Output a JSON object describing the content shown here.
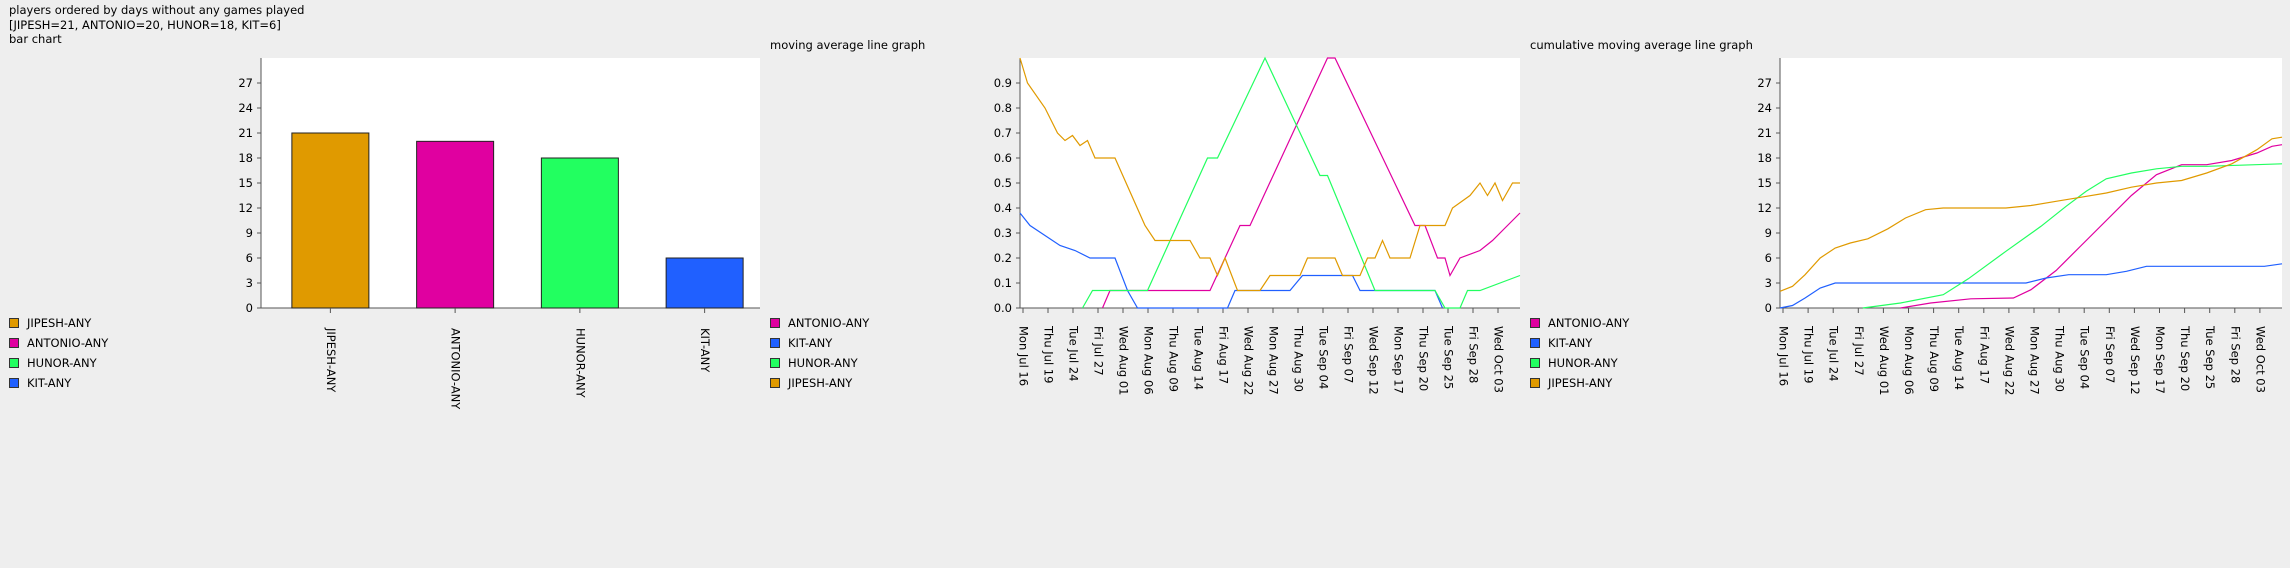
{
  "header": {
    "line1": "players ordered by days without any games played",
    "line2": "[JIPESH=21, ANTONIO=20, HUNOR=18, KIT=6]",
    "line3": "bar chart"
  },
  "colors": {
    "JIPESH": "#e09a00",
    "ANTONIO": "#e000a0",
    "HUNOR": "#22ff60",
    "KIT": "#2060ff"
  },
  "dates": [
    "Mon Jul 16",
    "Thu Jul 19",
    "Tue Jul 24",
    "Fri Jul 27",
    "Wed Aug 01",
    "Mon Aug 06",
    "Thu Aug 09",
    "Tue Aug 14",
    "Fri Aug 17",
    "Wed Aug 22",
    "Mon Aug 27",
    "Thu Aug 30",
    "Tue Sep 04",
    "Fri Sep 07",
    "Wed Sep 12",
    "Mon Sep 17",
    "Thu Sep 20",
    "Tue Sep 25",
    "Fri Sep 28",
    "Wed Oct 03"
  ],
  "chart_data": [
    {
      "type": "bar",
      "title": "bar chart",
      "categories": [
        "JIPESH-ANY",
        "ANTONIO-ANY",
        "HUNOR-ANY",
        "KIT-ANY"
      ],
      "values": [
        21,
        20,
        18,
        6
      ],
      "ylim": [
        0,
        30
      ],
      "yticks": [
        0,
        3,
        6,
        9,
        12,
        15,
        18,
        21,
        24,
        27
      ],
      "legend": [
        "JIPESH-ANY",
        "ANTONIO-ANY",
        "HUNOR-ANY",
        "KIT-ANY"
      ],
      "legend_placement": "left"
    },
    {
      "type": "line",
      "title": "moving average line graph",
      "ylim": [
        0,
        1
      ],
      "yticks": [
        "0.0",
        "0.1",
        "0.2",
        "0.3",
        "0.4",
        "0.5",
        "0.6",
        "0.7",
        "0.8",
        "0.9"
      ],
      "legend": [
        "ANTONIO-ANY",
        "KIT-ANY",
        "HUNOR-ANY",
        "JIPESH-ANY"
      ],
      "legend_placement": "left",
      "series": [
        {
          "name": "ANTONIO-ANY",
          "color": "ANTONIO",
          "points": [
            [
              0,
              null
            ],
            [
              3.3,
              null
            ],
            [
              3.3,
              0
            ],
            [
              3.6,
              0.07
            ],
            [
              7.6,
              0.07
            ],
            [
              8.2,
              0.2
            ],
            [
              8.8,
              0.33
            ],
            [
              9.2,
              0.33
            ],
            [
              12.3,
              1.0
            ],
            [
              12.6,
              1.0
            ],
            [
              15.8,
              0.33
            ],
            [
              16.2,
              0.33
            ],
            [
              16.7,
              0.2
            ],
            [
              17.0,
              0.2
            ],
            [
              17.2,
              0.13
            ],
            [
              17.6,
              0.2
            ],
            [
              18.4,
              0.23
            ],
            [
              18.9,
              0.27
            ],
            [
              19.4,
              0.32
            ],
            [
              20,
              0.38
            ]
          ]
        },
        {
          "name": "KIT-ANY",
          "color": "KIT",
          "points": [
            [
              0,
              0.38
            ],
            [
              0.4,
              0.33
            ],
            [
              1.0,
              0.29
            ],
            [
              1.6,
              0.25
            ],
            [
              2.2,
              0.23
            ],
            [
              2.8,
              0.2
            ],
            [
              3.8,
              0.2
            ],
            [
              4.3,
              0.07
            ],
            [
              4.7,
              0
            ],
            [
              8.3,
              0
            ],
            [
              8.6,
              0.07
            ],
            [
              10.8,
              0.07
            ],
            [
              11.3,
              0.13
            ],
            [
              13.3,
              0.13
            ],
            [
              13.6,
              0.07
            ],
            [
              16.6,
              0.07
            ],
            [
              16.9,
              0
            ],
            [
              20,
              null
            ]
          ]
        },
        {
          "name": "HUNOR-ANY",
          "color": "HUNOR",
          "points": [
            [
              0,
              null
            ],
            [
              2.5,
              null
            ],
            [
              2.5,
              0
            ],
            [
              2.9,
              0.07
            ],
            [
              5.1,
              0.07
            ],
            [
              7.5,
              0.6
            ],
            [
              7.9,
              0.6
            ],
            [
              9.8,
              1.0
            ],
            [
              12.0,
              0.53
            ],
            [
              12.3,
              0.53
            ],
            [
              14.2,
              0.07
            ],
            [
              16.6,
              0.07
            ],
            [
              17.0,
              0
            ],
            [
              17.6,
              0
            ],
            [
              17.9,
              0.07
            ],
            [
              18.4,
              0.07
            ],
            [
              20,
              0.13
            ]
          ]
        },
        {
          "name": "JIPESH-ANY",
          "color": "JIPESH",
          "points": [
            [
              0,
              1.0
            ],
            [
              0.3,
              0.9
            ],
            [
              1.0,
              0.8
            ],
            [
              1.5,
              0.7
            ],
            [
              1.8,
              0.67
            ],
            [
              2.1,
              0.69
            ],
            [
              2.4,
              0.65
            ],
            [
              2.7,
              0.67
            ],
            [
              3.0,
              0.6
            ],
            [
              3.8,
              0.6
            ],
            [
              5.0,
              0.33
            ],
            [
              5.4,
              0.27
            ],
            [
              6.8,
              0.27
            ],
            [
              7.2,
              0.2
            ],
            [
              7.6,
              0.2
            ],
            [
              7.9,
              0.13
            ],
            [
              8.2,
              0.2
            ],
            [
              8.7,
              0.07
            ],
            [
              9.6,
              0.07
            ],
            [
              10.0,
              0.13
            ],
            [
              11.2,
              0.13
            ],
            [
              11.5,
              0.2
            ],
            [
              12.6,
              0.2
            ],
            [
              12.9,
              0.13
            ],
            [
              13.6,
              0.13
            ],
            [
              13.9,
              0.2
            ],
            [
              14.2,
              0.2
            ],
            [
              14.5,
              0.27
            ],
            [
              14.8,
              0.2
            ],
            [
              15.6,
              0.2
            ],
            [
              16.0,
              0.33
            ],
            [
              17.0,
              0.33
            ],
            [
              17.3,
              0.4
            ],
            [
              18.0,
              0.45
            ],
            [
              18.4,
              0.5
            ],
            [
              18.7,
              0.45
            ],
            [
              19.0,
              0.5
            ],
            [
              19.3,
              0.43
            ],
            [
              19.7,
              0.5
            ],
            [
              20,
              0.5
            ]
          ]
        }
      ]
    },
    {
      "type": "line",
      "title": "cumulative moving average line graph",
      "ylim": [
        0,
        30
      ],
      "yticks": [
        0,
        3,
        6,
        9,
        12,
        15,
        18,
        21,
        24,
        27
      ],
      "legend": [
        "ANTONIO-ANY",
        "KIT-ANY",
        "HUNOR-ANY",
        "JIPESH-ANY"
      ],
      "legend_placement": "left",
      "series": [
        {
          "name": "ANTONIO-ANY",
          "color": "ANTONIO",
          "points": [
            [
              0,
              null
            ],
            [
              4.8,
              null
            ],
            [
              4.8,
              0
            ],
            [
              6.0,
              0.6
            ],
            [
              7.6,
              1.1
            ],
            [
              9.3,
              1.2
            ],
            [
              10.0,
              2.2
            ],
            [
              11.0,
              4.5
            ],
            [
              12.0,
              7.5
            ],
            [
              13.0,
              10.5
            ],
            [
              14.0,
              13.5
            ],
            [
              15.0,
              16.0
            ],
            [
              16.0,
              17.2
            ],
            [
              17.0,
              17.2
            ],
            [
              18.0,
              17.7
            ],
            [
              19.0,
              18.6
            ],
            [
              19.6,
              19.4
            ],
            [
              20,
              19.6
            ]
          ]
        },
        {
          "name": "KIT-ANY",
          "color": "KIT",
          "points": [
            [
              0,
              0
            ],
            [
              0.5,
              0.3
            ],
            [
              1.0,
              1.2
            ],
            [
              1.6,
              2.4
            ],
            [
              2.2,
              3.0
            ],
            [
              9.8,
              3.0
            ],
            [
              10.6,
              3.6
            ],
            [
              11.5,
              4.0
            ],
            [
              13.0,
              4.0
            ],
            [
              13.8,
              4.4
            ],
            [
              14.6,
              5.0
            ],
            [
              19.3,
              5.0
            ],
            [
              20,
              5.3
            ]
          ]
        },
        {
          "name": "HUNOR-ANY",
          "color": "HUNOR",
          "points": [
            [
              0,
              null
            ],
            [
              3.3,
              null
            ],
            [
              3.3,
              0
            ],
            [
              4.8,
              0.6
            ],
            [
              6.5,
              1.6
            ],
            [
              7.5,
              3.5
            ],
            [
              9.0,
              6.8
            ],
            [
              10.4,
              9.8
            ],
            [
              11.4,
              12.2
            ],
            [
              12.2,
              14.0
            ],
            [
              13.0,
              15.5
            ],
            [
              14.0,
              16.2
            ],
            [
              15.0,
              16.7
            ],
            [
              16.0,
              17.0
            ],
            [
              17.0,
              17.0
            ],
            [
              20,
              17.3
            ]
          ]
        },
        {
          "name": "JIPESH-ANY",
          "color": "JIPESH",
          "points": [
            [
              0,
              2.0
            ],
            [
              0.5,
              2.6
            ],
            [
              1.0,
              4.0
            ],
            [
              1.6,
              6.0
            ],
            [
              2.2,
              7.2
            ],
            [
              2.8,
              7.8
            ],
            [
              3.5,
              8.3
            ],
            [
              4.3,
              9.5
            ],
            [
              5.0,
              10.8
            ],
            [
              5.8,
              11.8
            ],
            [
              6.5,
              12.0
            ],
            [
              9.0,
              12.0
            ],
            [
              10.0,
              12.3
            ],
            [
              11.0,
              12.8
            ],
            [
              12.0,
              13.3
            ],
            [
              13.0,
              13.8
            ],
            [
              14.0,
              14.5
            ],
            [
              15.0,
              15.0
            ],
            [
              16.0,
              15.3
            ],
            [
              17.0,
              16.2
            ],
            [
              18.0,
              17.3
            ],
            [
              19.0,
              19.0
            ],
            [
              19.6,
              20.3
            ],
            [
              20,
              20.5
            ]
          ]
        }
      ]
    }
  ]
}
